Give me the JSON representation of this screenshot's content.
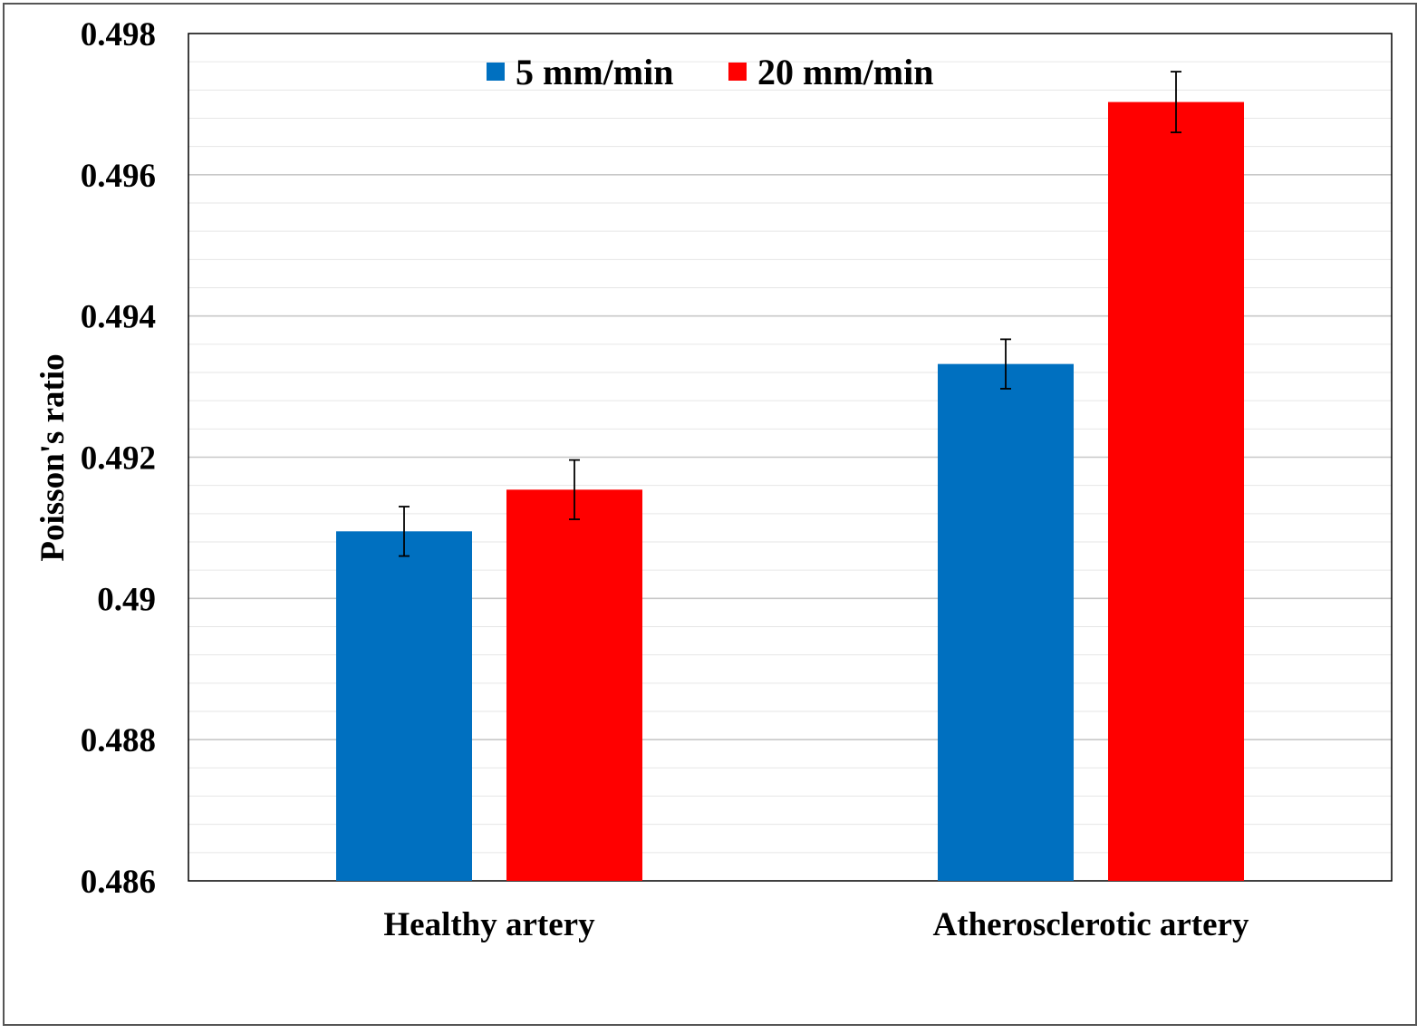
{
  "chart_data": {
    "type": "bar",
    "categories": [
      "Healthy artery",
      "Atherosclerotic artery"
    ],
    "series": [
      {
        "name": "5 mm/min",
        "color": "#0070C0",
        "values": [
          0.49095,
          0.49332
        ],
        "errors": [
          0.00035,
          0.00035
        ]
      },
      {
        "name": "20 mm/min",
        "color": "#FF0000",
        "values": [
          0.49154,
          0.49703
        ],
        "errors": [
          0.00042,
          0.00043
        ]
      }
    ],
    "ylabel": "Poisson's ratio",
    "ylim": [
      0.486,
      0.498
    ],
    "yticks": [
      "0.486",
      "0.488",
      "0.49",
      "0.492",
      "0.494",
      "0.496",
      "0.498"
    ],
    "major_step": 0.002,
    "minor_step": 0.0004,
    "grid": true,
    "legend_position": "top-center"
  }
}
